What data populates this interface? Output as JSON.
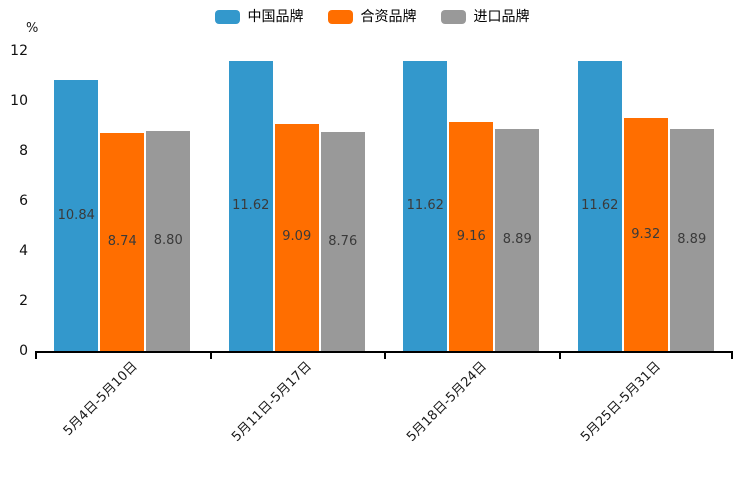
{
  "chart_data": {
    "type": "bar",
    "title": "",
    "ylabel": "%",
    "xlabel": "",
    "ylim": [
      0,
      12
    ],
    "y_ticks": [
      0,
      2,
      4,
      6,
      8,
      10,
      12
    ],
    "grid": false,
    "legend_position": "top",
    "categories": [
      "5月4日-5月10日",
      "5月11日-5月17日",
      "5月18日-5月24日",
      "5月25日-5月31日"
    ],
    "series": [
      {
        "name": "中国品牌",
        "color": "#3398CC",
        "values": [
          10.84,
          11.62,
          11.62,
          11.62
        ],
        "labels": [
          "10.84",
          "11.62",
          "11.62",
          "11.62"
        ]
      },
      {
        "name": "合资品牌",
        "color": "#FF6E00",
        "values": [
          8.74,
          9.09,
          9.16,
          9.32
        ],
        "labels": [
          "8.74",
          "9.09",
          "9.16",
          "9.32"
        ]
      },
      {
        "name": "进口品牌",
        "color": "#999999",
        "values": [
          8.8,
          8.76,
          8.89,
          8.89
        ],
        "labels": [
          "8.80",
          "8.76",
          "8.89",
          "8.89"
        ]
      }
    ],
    "axis_color": "#000000",
    "value_label_color": "#3a3a3a"
  }
}
